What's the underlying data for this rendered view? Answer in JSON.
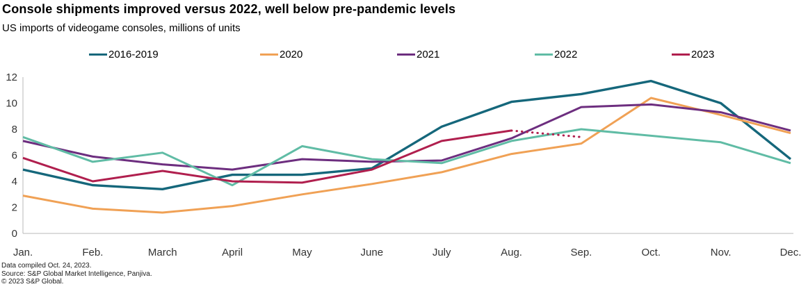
{
  "chart_data": {
    "type": "line",
    "title": "Console shipments improved versus 2022, well below pre-pandemic levels",
    "subtitle": "US imports of videogame consoles, millions of units",
    "categories": [
      "Jan.",
      "Feb.",
      "March",
      "April",
      "May",
      "June",
      "July",
      "Aug.",
      "Sep.",
      "Oct.",
      "Nov.",
      "Dec."
    ],
    "xlabel": "",
    "ylabel": "millions of units",
    "ylim": [
      0,
      12
    ],
    "yticks": [
      0,
      2,
      4,
      6,
      8,
      10,
      12
    ],
    "grid": false,
    "legend_position": "top",
    "axis_color": "#b9b9b9",
    "tick_label_color": "#333333",
    "series": [
      {
        "name": "2016-2019",
        "color": "#15677B",
        "style": "solid",
        "thickness": 3.4,
        "in_legend": true,
        "values": [
          4.9,
          3.7,
          3.4,
          4.5,
          4.5,
          5.0,
          8.2,
          10.1,
          10.7,
          11.7,
          10.0,
          5.7
        ]
      },
      {
        "name": "2020",
        "color": "#F0A155",
        "style": "solid",
        "thickness": 3,
        "in_legend": true,
        "values": [
          2.9,
          1.9,
          1.6,
          2.1,
          3.0,
          3.8,
          4.7,
          6.1,
          6.9,
          10.4,
          9.1,
          7.7
        ]
      },
      {
        "name": "2021",
        "color": "#6D2E7F",
        "style": "solid",
        "thickness": 3,
        "in_legend": true,
        "values": [
          7.1,
          5.9,
          5.3,
          4.9,
          5.7,
          5.5,
          5.6,
          7.3,
          9.7,
          9.9,
          9.3,
          7.9
        ]
      },
      {
        "name": "2022",
        "color": "#60BCA5",
        "style": "solid",
        "thickness": 3,
        "in_legend": true,
        "values": [
          7.4,
          5.5,
          6.2,
          3.7,
          6.7,
          5.7,
          5.4,
          7.1,
          8.0,
          7.5,
          7.0,
          5.4
        ]
      },
      {
        "name": "2023",
        "color": "#B01F4E",
        "style": "solid",
        "thickness": 3,
        "in_legend": true,
        "values": [
          5.8,
          4.0,
          4.8,
          4.0,
          3.9,
          4.9,
          7.1,
          7.9,
          null,
          null,
          null,
          null
        ]
      },
      {
        "name": "2023 estimate",
        "color": "#B01F4E",
        "style": "dotted",
        "thickness": 3,
        "in_legend": false,
        "values": [
          null,
          null,
          null,
          null,
          null,
          null,
          null,
          7.9,
          7.4,
          null,
          null,
          null
        ]
      }
    ]
  },
  "footer": {
    "line1": "Data compiled Oct. 24, 2023.",
    "line2": "Source: S&P Global Market Intelligence, Panjiva.",
    "line3": "© 2023 S&P Global."
  }
}
